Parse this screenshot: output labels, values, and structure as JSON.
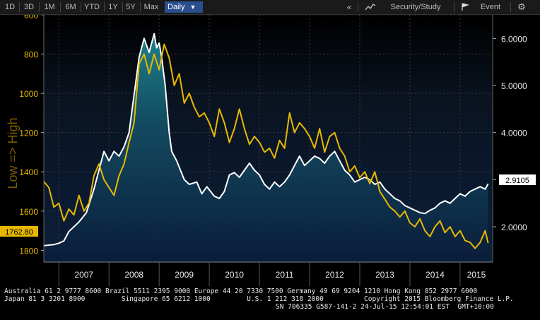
{
  "toolbar": {
    "ranges": [
      "1D",
      "3D",
      "1M",
      "6M",
      "YTD",
      "1Y",
      "5Y",
      "Max"
    ],
    "period": "Daily",
    "period_arrow": "▼",
    "security_label": "Security/Study",
    "event_label": "Event",
    "icons": [
      "collapse-icon",
      "chart-style-icon",
      "flag-icon",
      "gear-icon"
    ],
    "selected_color": "#2a4f8f"
  },
  "chart_data": {
    "type": "line",
    "xlabel": "",
    "ylabel_left": "Low => High",
    "x_ticks": [
      "2007",
      "2008",
      "2009",
      "2010",
      "2011",
      "2012",
      "2013",
      "2014",
      "2015"
    ],
    "left_axis": {
      "ticks": [
        600,
        800,
        1000,
        1200,
        1400,
        1600,
        1800
      ],
      "range": [
        600,
        1860
      ],
      "inverted": true
    },
    "right_axis": {
      "ticks": [
        "2.0000",
        "3.0000",
        "4.0000",
        "5.0000",
        "6.0000"
      ],
      "range": [
        1.25,
        6.5
      ]
    },
    "last_left": "1762.80",
    "last_right": "2.9105",
    "grid": true,
    "series": [
      {
        "color": "#ffffff",
        "axis": "right",
        "area": true,
        "points": [
          [
            2006.7,
            1.6
          ],
          [
            2006.9,
            1.62
          ],
          [
            2007.0,
            1.65
          ],
          [
            2007.1,
            1.7
          ],
          [
            2007.2,
            1.9
          ],
          [
            2007.4,
            2.1
          ],
          [
            2007.55,
            2.3
          ],
          [
            2007.7,
            2.8
          ],
          [
            2007.8,
            3.2
          ],
          [
            2007.9,
            3.6
          ],
          [
            2008.0,
            3.4
          ],
          [
            2008.1,
            3.6
          ],
          [
            2008.2,
            3.5
          ],
          [
            2008.3,
            3.7
          ],
          [
            2008.4,
            4.0
          ],
          [
            2008.5,
            4.8
          ],
          [
            2008.6,
            5.6
          ],
          [
            2008.7,
            6.0
          ],
          [
            2008.8,
            5.7
          ],
          [
            2008.9,
            6.1
          ],
          [
            2008.95,
            5.8
          ],
          [
            2009.0,
            5.9
          ],
          [
            2009.05,
            5.6
          ],
          [
            2009.12,
            5.0
          ],
          [
            2009.2,
            4.0
          ],
          [
            2009.25,
            3.6
          ],
          [
            2009.35,
            3.4
          ],
          [
            2009.5,
            3.0
          ],
          [
            2009.6,
            2.9
          ],
          [
            2009.75,
            2.95
          ],
          [
            2009.85,
            2.7
          ],
          [
            2009.95,
            2.85
          ],
          [
            2010.1,
            2.65
          ],
          [
            2010.2,
            2.6
          ],
          [
            2010.3,
            2.75
          ],
          [
            2010.4,
            3.1
          ],
          [
            2010.5,
            3.15
          ],
          [
            2010.6,
            3.05
          ],
          [
            2010.7,
            3.2
          ],
          [
            2010.8,
            3.35
          ],
          [
            2010.9,
            3.2
          ],
          [
            2011.0,
            3.1
          ],
          [
            2011.1,
            2.9
          ],
          [
            2011.2,
            2.8
          ],
          [
            2011.3,
            2.95
          ],
          [
            2011.4,
            2.85
          ],
          [
            2011.5,
            2.95
          ],
          [
            2011.6,
            3.1
          ],
          [
            2011.7,
            3.3
          ],
          [
            2011.8,
            3.5
          ],
          [
            2011.9,
            3.3
          ],
          [
            2012.0,
            3.4
          ],
          [
            2012.1,
            3.5
          ],
          [
            2012.2,
            3.45
          ],
          [
            2012.3,
            3.35
          ],
          [
            2012.4,
            3.5
          ],
          [
            2012.5,
            3.6
          ],
          [
            2012.6,
            3.4
          ],
          [
            2012.7,
            3.2
          ],
          [
            2012.8,
            3.1
          ],
          [
            2012.9,
            2.95
          ],
          [
            2013.0,
            3.0
          ],
          [
            2013.1,
            3.05
          ],
          [
            2013.2,
            3.0
          ],
          [
            2013.3,
            2.9
          ],
          [
            2013.4,
            2.95
          ],
          [
            2013.5,
            2.8
          ],
          [
            2013.6,
            2.7
          ],
          [
            2013.7,
            2.6
          ],
          [
            2013.8,
            2.55
          ],
          [
            2013.9,
            2.45
          ],
          [
            2014.0,
            2.4
          ],
          [
            2014.1,
            2.35
          ],
          [
            2014.2,
            2.3
          ],
          [
            2014.3,
            2.28
          ],
          [
            2014.4,
            2.35
          ],
          [
            2014.5,
            2.4
          ],
          [
            2014.6,
            2.5
          ],
          [
            2014.7,
            2.55
          ],
          [
            2014.8,
            2.5
          ],
          [
            2014.9,
            2.6
          ],
          [
            2015.0,
            2.7
          ],
          [
            2015.1,
            2.65
          ],
          [
            2015.2,
            2.75
          ],
          [
            2015.3,
            2.8
          ],
          [
            2015.4,
            2.85
          ],
          [
            2015.5,
            2.8
          ],
          [
            2015.56,
            2.91
          ]
        ]
      },
      {
        "color": "#e8b800",
        "axis": "left",
        "area": false,
        "points": [
          [
            2006.7,
            1450
          ],
          [
            2006.8,
            1480
          ],
          [
            2006.9,
            1580
          ],
          [
            2007.0,
            1560
          ],
          [
            2007.1,
            1650
          ],
          [
            2007.2,
            1590
          ],
          [
            2007.3,
            1620
          ],
          [
            2007.4,
            1520
          ],
          [
            2007.5,
            1600
          ],
          [
            2007.6,
            1560
          ],
          [
            2007.7,
            1420
          ],
          [
            2007.8,
            1360
          ],
          [
            2007.9,
            1440
          ],
          [
            2008.0,
            1480
          ],
          [
            2008.1,
            1520
          ],
          [
            2008.2,
            1420
          ],
          [
            2008.3,
            1360
          ],
          [
            2008.4,
            1250
          ],
          [
            2008.5,
            1150
          ],
          [
            2008.6,
            850
          ],
          [
            2008.7,
            800
          ],
          [
            2008.8,
            900
          ],
          [
            2008.9,
            800
          ],
          [
            2009.0,
            880
          ],
          [
            2009.1,
            750
          ],
          [
            2009.2,
            820
          ],
          [
            2009.3,
            960
          ],
          [
            2009.4,
            900
          ],
          [
            2009.5,
            1050
          ],
          [
            2009.6,
            1000
          ],
          [
            2009.7,
            1070
          ],
          [
            2009.8,
            1120
          ],
          [
            2009.9,
            1100
          ],
          [
            2010.0,
            1150
          ],
          [
            2010.1,
            1220
          ],
          [
            2010.2,
            1080
          ],
          [
            2010.3,
            1150
          ],
          [
            2010.4,
            1250
          ],
          [
            2010.5,
            1180
          ],
          [
            2010.6,
            1080
          ],
          [
            2010.7,
            1180
          ],
          [
            2010.8,
            1260
          ],
          [
            2010.9,
            1220
          ],
          [
            2011.0,
            1250
          ],
          [
            2011.1,
            1300
          ],
          [
            2011.2,
            1280
          ],
          [
            2011.3,
            1330
          ],
          [
            2011.4,
            1240
          ],
          [
            2011.5,
            1280
          ],
          [
            2011.6,
            1100
          ],
          [
            2011.7,
            1200
          ],
          [
            2011.8,
            1150
          ],
          [
            2011.9,
            1180
          ],
          [
            2012.0,
            1220
          ],
          [
            2012.1,
            1280
          ],
          [
            2012.2,
            1180
          ],
          [
            2012.3,
            1300
          ],
          [
            2012.4,
            1220
          ],
          [
            2012.5,
            1200
          ],
          [
            2012.6,
            1280
          ],
          [
            2012.7,
            1320
          ],
          [
            2012.8,
            1400
          ],
          [
            2012.9,
            1370
          ],
          [
            2013.0,
            1430
          ],
          [
            2013.1,
            1400
          ],
          [
            2013.2,
            1460
          ],
          [
            2013.3,
            1400
          ],
          [
            2013.4,
            1500
          ],
          [
            2013.5,
            1540
          ],
          [
            2013.6,
            1580
          ],
          [
            2013.7,
            1600
          ],
          [
            2013.8,
            1630
          ],
          [
            2013.9,
            1600
          ],
          [
            2014.0,
            1660
          ],
          [
            2014.1,
            1680
          ],
          [
            2014.2,
            1640
          ],
          [
            2014.3,
            1700
          ],
          [
            2014.4,
            1730
          ],
          [
            2014.5,
            1680
          ],
          [
            2014.6,
            1650
          ],
          [
            2014.7,
            1710
          ],
          [
            2014.8,
            1680
          ],
          [
            2014.9,
            1730
          ],
          [
            2015.0,
            1700
          ],
          [
            2015.1,
            1750
          ],
          [
            2015.2,
            1760
          ],
          [
            2015.3,
            1790
          ],
          [
            2015.4,
            1760
          ],
          [
            2015.5,
            1700
          ],
          [
            2015.56,
            1762.8
          ]
        ]
      }
    ]
  },
  "footer": {
    "line1": "Australia 61 2 9777 8600 Brazil 5511 2395 9000 Europe 44 20 7330 7500 Germany 49 69 9204 1210 Hong Kong 852 2977 6000",
    "line2": "Japan 81 3 3201 8900         Singapore 65 6212 1000         U.S. 1 212 318 2000          Copyright 2015 Bloomberg Finance L.P.",
    "line3": "SN 706335 G587-141-2 24-Jul-15 12:54:01 EST  GMT+10:00"
  }
}
